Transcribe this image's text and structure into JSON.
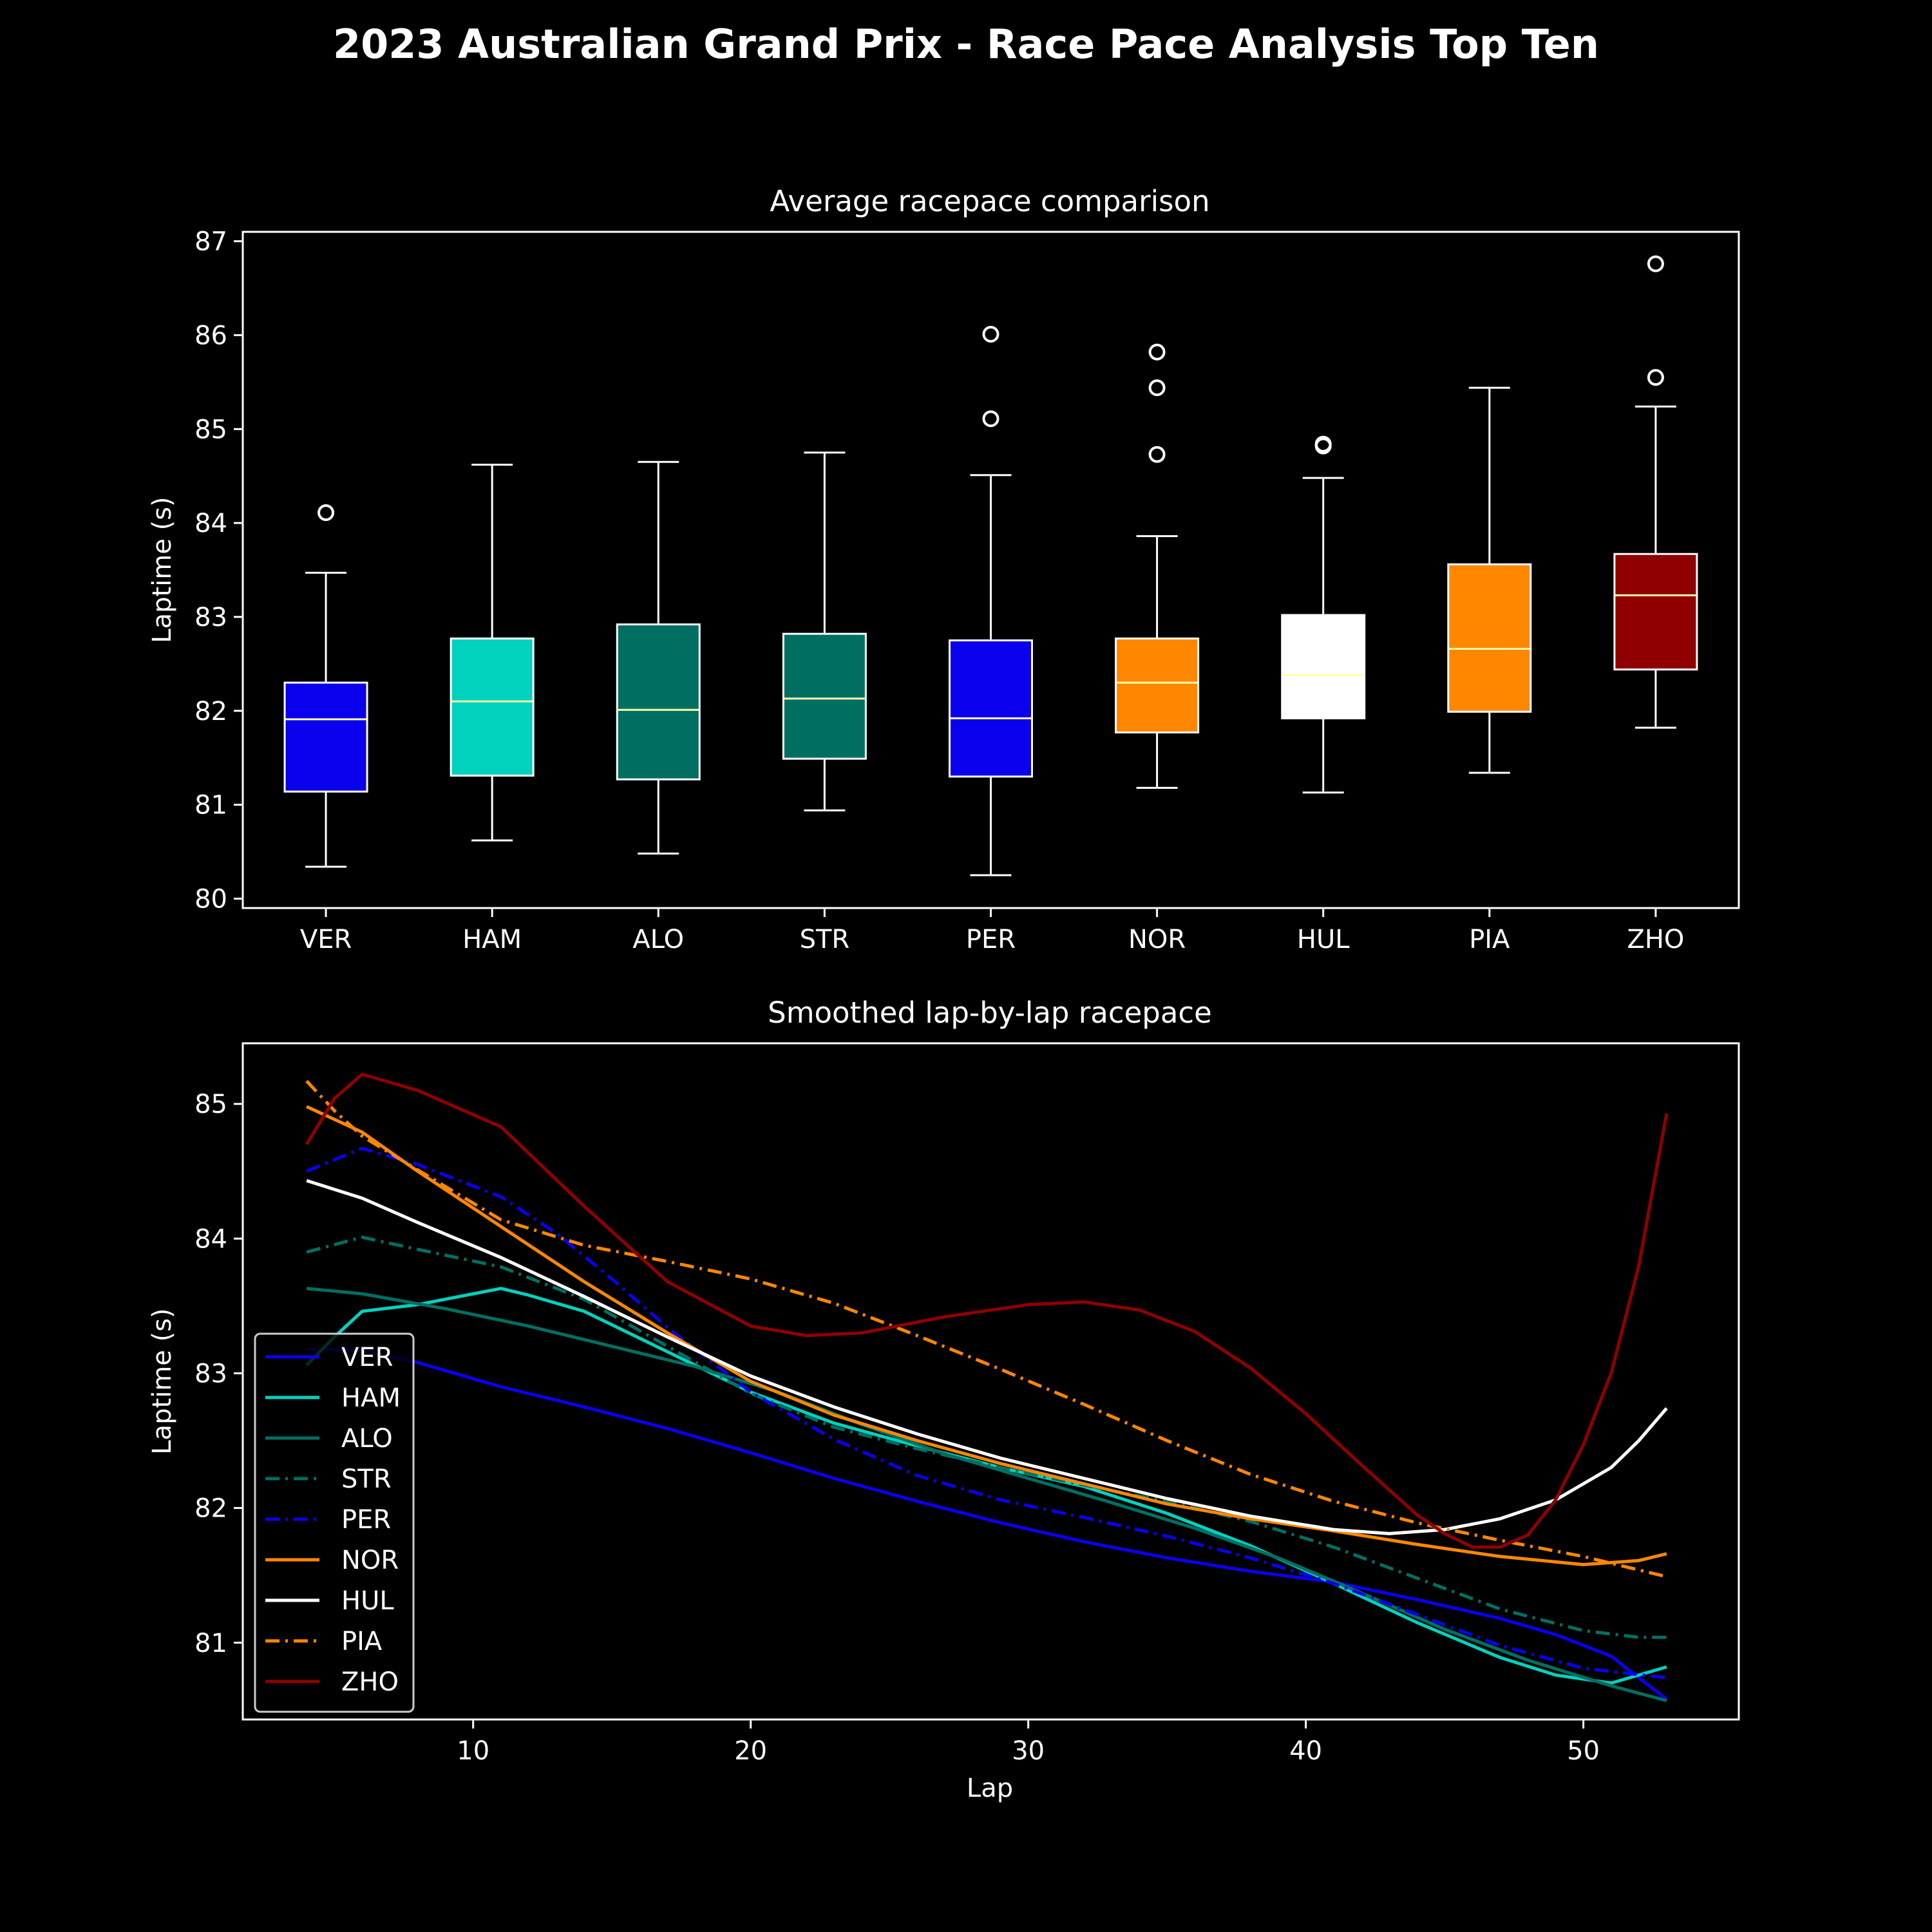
{
  "title": "2023 Australian Grand Prix - Race Pace Analysis Top Ten",
  "colors": {
    "background": "#000000",
    "foreground": "#ffffff",
    "median": "#ffffaa"
  },
  "chart_data": [
    {
      "type": "box",
      "title": "Average racepace comparison",
      "xlabel": "",
      "ylabel": "Laptime (s)",
      "ylim": [
        79.9,
        87.1
      ],
      "yticks": [
        80,
        81,
        82,
        83,
        84,
        85,
        86,
        87
      ],
      "grid": false,
      "categories": [
        "VER",
        "HAM",
        "ALO",
        "STR",
        "PER",
        "NOR",
        "HUL",
        "PIA",
        "ZHO"
      ],
      "boxes": [
        {
          "driver": "VER",
          "color": "#0a00ee",
          "whisker_low": 80.34,
          "q1": 81.14,
          "median": 81.91,
          "q3": 82.3,
          "whisker_high": 83.47,
          "outliers": [
            84.11
          ]
        },
        {
          "driver": "HAM",
          "color": "#00d2be",
          "whisker_low": 80.62,
          "q1": 81.31,
          "median": 82.1,
          "q3": 82.77,
          "whisker_high": 84.62,
          "outliers": []
        },
        {
          "driver": "ALO",
          "color": "#006f62",
          "whisker_low": 80.48,
          "q1": 81.27,
          "median": 82.01,
          "q3": 82.92,
          "whisker_high": 84.65,
          "outliers": []
        },
        {
          "driver": "STR",
          "color": "#006f62",
          "whisker_low": 80.94,
          "q1": 81.49,
          "median": 82.13,
          "q3": 82.82,
          "whisker_high": 84.75,
          "outliers": []
        },
        {
          "driver": "PER",
          "color": "#0a00ee",
          "whisker_low": 80.25,
          "q1": 81.3,
          "median": 81.92,
          "q3": 82.75,
          "whisker_high": 84.51,
          "outliers": [
            85.11,
            86.01
          ]
        },
        {
          "driver": "NOR",
          "color": "#ff8700",
          "whisker_low": 81.18,
          "q1": 81.77,
          "median": 82.3,
          "q3": 82.77,
          "whisker_high": 83.86,
          "outliers": [
            84.73,
            85.44,
            85.82
          ]
        },
        {
          "driver": "HUL",
          "color": "#ffffff",
          "whisker_low": 81.13,
          "q1": 81.92,
          "median": 82.38,
          "q3": 83.02,
          "whisker_high": 84.48,
          "outliers": [
            84.82,
            84.84
          ]
        },
        {
          "driver": "PIA",
          "color": "#ff8700",
          "whisker_low": 81.34,
          "q1": 81.99,
          "median": 82.66,
          "q3": 83.56,
          "whisker_high": 85.44,
          "outliers": []
        },
        {
          "driver": "ZHO",
          "color": "#900000",
          "whisker_low": 81.82,
          "q1": 82.44,
          "median": 83.23,
          "q3": 83.67,
          "whisker_high": 85.24,
          "outliers": [
            85.55,
            86.76
          ]
        }
      ]
    },
    {
      "type": "line",
      "title": "Smoothed lap-by-lap racepace",
      "xlabel": "Lap",
      "ylabel": "Laptime (s)",
      "xlim": [
        1.7,
        55.6
      ],
      "ylim": [
        80.43,
        85.45
      ],
      "xticks": [
        10,
        20,
        30,
        40,
        50
      ],
      "yticks": [
        81,
        82,
        83,
        84,
        85
      ],
      "grid": false,
      "legend": "bottom-left",
      "series": [
        {
          "name": "VER",
          "color": "#0a00ee",
          "dash": "solid",
          "points": [
            [
              4,
              83.18
            ],
            [
              6,
              83.17
            ],
            [
              8,
              83.08
            ],
            [
              11,
              82.9
            ],
            [
              14,
              82.75
            ],
            [
              17,
              82.59
            ],
            [
              20,
              82.41
            ],
            [
              23,
              82.22
            ],
            [
              26,
              82.05
            ],
            [
              29,
              81.89
            ],
            [
              32,
              81.75
            ],
            [
              35,
              81.63
            ],
            [
              38,
              81.53
            ],
            [
              41,
              81.45
            ],
            [
              44,
              81.32
            ],
            [
              47,
              81.18
            ],
            [
              49,
              81.06
            ],
            [
              51,
              80.9
            ],
            [
              53,
              80.58
            ]
          ]
        },
        {
          "name": "HAM",
          "color": "#00d2be",
          "dash": "solid",
          "points": [
            [
              4,
              83.06
            ],
            [
              5,
              83.27
            ],
            [
              6,
              83.46
            ],
            [
              8,
              83.51
            ],
            [
              11,
              83.63
            ],
            [
              12,
              83.58
            ],
            [
              14,
              83.46
            ],
            [
              17,
              83.16
            ],
            [
              20,
              82.86
            ],
            [
              23,
              82.63
            ],
            [
              26,
              82.46
            ],
            [
              29,
              82.3
            ],
            [
              32,
              82.16
            ],
            [
              35,
              81.96
            ],
            [
              38,
              81.72
            ],
            [
              41,
              81.44
            ],
            [
              44,
              81.15
            ],
            [
              47,
              80.89
            ],
            [
              49,
              80.76
            ],
            [
              51,
              80.7
            ],
            [
              53,
              80.82
            ]
          ]
        },
        {
          "name": "ALO",
          "color": "#006f62",
          "dash": "solid",
          "points": [
            [
              4,
              83.63
            ],
            [
              6,
              83.59
            ],
            [
              9,
              83.48
            ],
            [
              12,
              83.35
            ],
            [
              15,
              83.2
            ],
            [
              18,
              83.05
            ],
            [
              21,
              82.86
            ],
            [
              24,
              82.62
            ],
            [
              27,
              82.4
            ],
            [
              30,
              82.22
            ],
            [
              33,
              82.04
            ],
            [
              36,
              81.85
            ],
            [
              39,
              81.63
            ],
            [
              42,
              81.37
            ],
            [
              45,
              81.1
            ],
            [
              48,
              80.87
            ],
            [
              51,
              80.68
            ],
            [
              53,
              80.57
            ]
          ]
        },
        {
          "name": "STR",
          "color": "#006f62",
          "dash": "dashdot",
          "points": [
            [
              4,
              83.9
            ],
            [
              6,
              84.01
            ],
            [
              8,
              83.92
            ],
            [
              11,
              83.79
            ],
            [
              14,
              83.55
            ],
            [
              17,
              83.2
            ],
            [
              20,
              82.85
            ],
            [
              23,
              82.6
            ],
            [
              26,
              82.44
            ],
            [
              29,
              82.3
            ],
            [
              32,
              82.17
            ],
            [
              35,
              82.05
            ],
            [
              38,
              81.9
            ],
            [
              41,
              81.71
            ],
            [
              44,
              81.48
            ],
            [
              47,
              81.25
            ],
            [
              50,
              81.09
            ],
            [
              52,
              81.04
            ],
            [
              53,
              81.04
            ]
          ]
        },
        {
          "name": "PER",
          "color": "#0a00ee",
          "dash": "dashdot",
          "points": [
            [
              4,
              84.5
            ],
            [
              6,
              84.67
            ],
            [
              8,
              84.55
            ],
            [
              11,
              84.31
            ],
            [
              13,
              84.04
            ],
            [
              15,
              83.7
            ],
            [
              17,
              83.34
            ],
            [
              20,
              82.86
            ],
            [
              23,
              82.51
            ],
            [
              26,
              82.24
            ],
            [
              29,
              82.06
            ],
            [
              32,
              81.93
            ],
            [
              35,
              81.79
            ],
            [
              38,
              81.63
            ],
            [
              41,
              81.44
            ],
            [
              44,
              81.21
            ],
            [
              47,
              80.98
            ],
            [
              50,
              80.81
            ],
            [
              53,
              80.74
            ]
          ]
        },
        {
          "name": "NOR",
          "color": "#ff8700",
          "dash": "solid",
          "points": [
            [
              4,
              84.98
            ],
            [
              6,
              84.79
            ],
            [
              8,
              84.5
            ],
            [
              11,
              84.09
            ],
            [
              14,
              83.68
            ],
            [
              17,
              83.3
            ],
            [
              20,
              82.94
            ],
            [
              23,
              82.69
            ],
            [
              26,
              82.5
            ],
            [
              29,
              82.33
            ],
            [
              32,
              82.18
            ],
            [
              35,
              82.03
            ],
            [
              38,
              81.92
            ],
            [
              41,
              81.83
            ],
            [
              44,
              81.73
            ],
            [
              47,
              81.64
            ],
            [
              50,
              81.58
            ],
            [
              52,
              81.61
            ],
            [
              53,
              81.66
            ]
          ]
        },
        {
          "name": "HUL",
          "color": "#ffffff",
          "dash": "solid",
          "points": [
            [
              4,
              84.43
            ],
            [
              6,
              84.3
            ],
            [
              8,
              84.12
            ],
            [
              11,
              83.86
            ],
            [
              14,
              83.57
            ],
            [
              17,
              83.27
            ],
            [
              20,
              82.98
            ],
            [
              23,
              82.75
            ],
            [
              26,
              82.55
            ],
            [
              29,
              82.37
            ],
            [
              32,
              82.22
            ],
            [
              35,
              82.07
            ],
            [
              38,
              81.94
            ],
            [
              41,
              81.84
            ],
            [
              43,
              81.81
            ],
            [
              45,
              81.84
            ],
            [
              47,
              81.92
            ],
            [
              49,
              82.06
            ],
            [
              51,
              82.3
            ],
            [
              52,
              82.5
            ],
            [
              53,
              82.74
            ]
          ]
        },
        {
          "name": "PIA",
          "color": "#ff8700",
          "dash": "dashdot",
          "points": [
            [
              4,
              85.17
            ],
            [
              5,
              84.95
            ],
            [
              6,
              84.76
            ],
            [
              8,
              84.51
            ],
            [
              11,
              84.14
            ],
            [
              14,
              83.95
            ],
            [
              17,
              83.83
            ],
            [
              20,
              83.7
            ],
            [
              23,
              83.52
            ],
            [
              26,
              83.28
            ],
            [
              29,
              83.03
            ],
            [
              32,
              82.77
            ],
            [
              35,
              82.5
            ],
            [
              38,
              82.25
            ],
            [
              41,
              82.05
            ],
            [
              44,
              81.89
            ],
            [
              47,
              81.76
            ],
            [
              50,
              81.64
            ],
            [
              53,
              81.49
            ]
          ]
        },
        {
          "name": "ZHO",
          "color": "#900000",
          "dash": "solid",
          "points": [
            [
              4,
              84.7
            ],
            [
              5,
              85.04
            ],
            [
              6,
              85.22
            ],
            [
              8,
              85.1
            ],
            [
              11,
              84.83
            ],
            [
              14,
              84.24
            ],
            [
              17,
              83.68
            ],
            [
              20,
              83.35
            ],
            [
              22,
              83.28
            ],
            [
              24,
              83.3
            ],
            [
              27,
              83.42
            ],
            [
              30,
              83.51
            ],
            [
              32,
              83.53
            ],
            [
              34,
              83.47
            ],
            [
              36,
              83.31
            ],
            [
              38,
              83.04
            ],
            [
              40,
              82.7
            ],
            [
              42,
              82.32
            ],
            [
              44,
              81.95
            ],
            [
              45,
              81.81
            ],
            [
              46,
              81.71
            ],
            [
              47,
              81.71
            ],
            [
              48,
              81.8
            ],
            [
              49,
              82.06
            ],
            [
              50,
              82.47
            ],
            [
              51,
              83.0
            ],
            [
              52,
              83.8
            ],
            [
              53,
              84.93
            ]
          ]
        }
      ]
    }
  ]
}
